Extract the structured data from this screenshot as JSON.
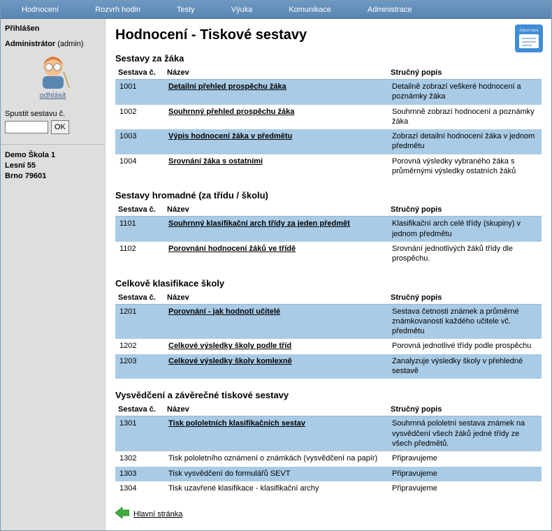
{
  "colors": {
    "nav_bg_top": "#6c98c2",
    "nav_bg_bottom": "#5a87b2",
    "nav_text": "#ffffff",
    "sidebar_bg": "#dedede",
    "row_highlight": "#a9cbe6",
    "link": "#47678b",
    "border": "#7c97b5"
  },
  "nav": {
    "items": [
      "Hodnocení",
      "Rozvrh hodin",
      "Testy",
      "Výuka",
      "Komunikace",
      "Administrace"
    ]
  },
  "sidebar": {
    "logged_in_label": "Přihlášen",
    "role": "Administrátor",
    "login": "admin",
    "logout": "odhlásit",
    "spustit_label": "Spustit sestavu č.",
    "spustit_value": "",
    "spustit_button": "OK",
    "school": {
      "name": "Demo Škola 1",
      "street": "Lesní 55",
      "city": "Brno 79601"
    }
  },
  "page": {
    "title": "Hodnocení - Tiskové sestavy",
    "columns": {
      "id": "Sestava č.",
      "name": "Název",
      "desc": "Stručný popis"
    },
    "sections": [
      {
        "title": "Sestavy za žáka",
        "rows": [
          {
            "id": "1001",
            "name": "Detailní přehled prospěchu žáka",
            "link": true,
            "desc": "Detailně zobrazí veškeré hodnocení a poznámky žáka",
            "hl": true
          },
          {
            "id": "1002",
            "name": "Souhrnný přehled prospěchu žáka",
            "link": true,
            "desc": "Souhrnně zobrazí hodnocení a poznámky žáka",
            "hl": false
          },
          {
            "id": "1003",
            "name": "Výpis hodnocení žáka v předmětu",
            "link": true,
            "desc": "Zobrazí detailní hodnocení žáka v jednom předmětu",
            "hl": true
          },
          {
            "id": "1004",
            "name": "Srovnání žáka s ostatními",
            "link": true,
            "desc": "Porovná výsledky vybraného žáka s průměrnými výsledky ostatních žáků",
            "hl": false
          }
        ]
      },
      {
        "title": "Sestavy hromadné (za třídu / školu)",
        "rows": [
          {
            "id": "1101",
            "name": "Souhrnný klasifikační arch třídy za jeden předmět",
            "link": true,
            "desc": "Klasifikační arch celé třídy (skupiny) v jednom předmětu",
            "hl": true
          },
          {
            "id": "1102",
            "name": "Porovnání hodnocení žáků ve třídě",
            "link": true,
            "desc": "Srovnání jednotlivých žáků třídy dle prospěchu.",
            "hl": false
          }
        ]
      },
      {
        "title": "Celkově klasifikace školy",
        "rows": [
          {
            "id": "1201",
            "name": "Porovnání - jak hodnotí učitelé",
            "link": true,
            "desc": "Sestava četnosti známek a průměrné známkovanosti každého učitele vč. předmětu",
            "hl": true
          },
          {
            "id": "1202",
            "name": "Celkové výsledky školy podle tříd",
            "link": true,
            "desc": "Porovná jednotlivé třídy podle prospěchu",
            "hl": false
          },
          {
            "id": "1203",
            "name": "Celkové výsledky školy komlexně",
            "link": true,
            "desc": "Zanalyzuje výsledky školy v přehledné sestavě",
            "hl": true
          }
        ]
      },
      {
        "title": "Vysvědčení a závěrečné tiskové sestavy",
        "rows": [
          {
            "id": "1301",
            "name": "Tisk pololetních klasifikačních sestav",
            "link": true,
            "desc": "Souhrnná pololetní sestava známek na vysvědčení všech žáků jedné třídy ze všech předmětů.",
            "hl": true
          },
          {
            "id": "1302",
            "name": "Tisk pololetního oznámení o známkách (vysvědčení na papír)",
            "link": false,
            "desc": "Připravujeme",
            "hl": false
          },
          {
            "id": "1303",
            "name": "Tisk vysvědčení do formulářů SEVT",
            "link": false,
            "desc": "Připravujeme",
            "hl": true
          },
          {
            "id": "1304",
            "name": "Tisk uzavřené klasifikace - klasifikační archy",
            "link": false,
            "desc": "Připravujeme",
            "hl": false
          }
        ]
      }
    ],
    "footer_link": "Hlavní stránka"
  }
}
